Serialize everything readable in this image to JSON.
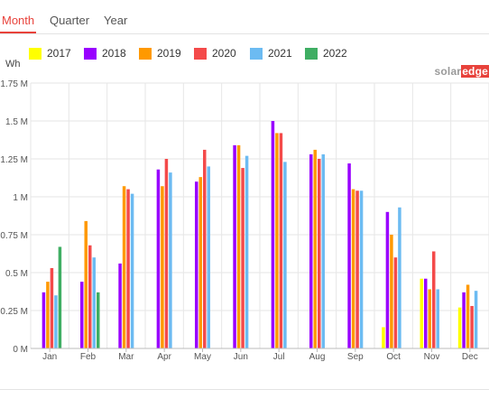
{
  "tabs": [
    {
      "label": "Month",
      "active": true
    },
    {
      "label": "Quarter",
      "active": false
    },
    {
      "label": "Year",
      "active": false
    }
  ],
  "brand": {
    "part1": "solar",
    "part2": "edge"
  },
  "chart_data": {
    "type": "bar",
    "unit_label": "Wh",
    "categories": [
      "Jan",
      "Feb",
      "Mar",
      "Apr",
      "May",
      "Jun",
      "Jul",
      "Aug",
      "Sep",
      "Oct",
      "Nov",
      "Dec"
    ],
    "y_ticks": [
      {
        "value": 0,
        "label": "0 M"
      },
      {
        "value": 250000,
        "label": "0.25 M"
      },
      {
        "value": 500000,
        "label": "0.5 M"
      },
      {
        "value": 750000,
        "label": "0.75 M"
      },
      {
        "value": 1000000,
        "label": "1 M"
      },
      {
        "value": 1250000,
        "label": "1.25 M"
      },
      {
        "value": 1500000,
        "label": "1.5 M"
      },
      {
        "value": 1750000,
        "label": "1.75 M"
      }
    ],
    "ylim": [
      0,
      1750000
    ],
    "legend_position": "top",
    "grid": true,
    "series": [
      {
        "name": "2017",
        "color": "#ffff00",
        "values": [
          null,
          null,
          null,
          null,
          null,
          null,
          null,
          null,
          null,
          140000,
          460000,
          270000
        ]
      },
      {
        "name": "2018",
        "color": "#9900ff",
        "values": [
          370000,
          440000,
          560000,
          1180000,
          1100000,
          1340000,
          1500000,
          1280000,
          1220000,
          900000,
          460000,
          370000
        ]
      },
      {
        "name": "2019",
        "color": "#ff9900",
        "values": [
          440000,
          840000,
          1070000,
          1070000,
          1130000,
          1340000,
          1420000,
          1310000,
          1050000,
          750000,
          390000,
          420000
        ]
      },
      {
        "name": "2020",
        "color": "#f44a4a",
        "values": [
          530000,
          680000,
          1050000,
          1250000,
          1310000,
          1190000,
          1420000,
          1250000,
          1040000,
          600000,
          640000,
          280000
        ]
      },
      {
        "name": "2021",
        "color": "#6cbbf2",
        "values": [
          350000,
          600000,
          1020000,
          1160000,
          1200000,
          1270000,
          1230000,
          1280000,
          1040000,
          930000,
          390000,
          380000
        ]
      },
      {
        "name": "2022",
        "color": "#3fae63",
        "values": [
          670000,
          370000,
          null,
          null,
          null,
          null,
          null,
          null,
          null,
          null,
          null,
          null
        ]
      }
    ]
  }
}
